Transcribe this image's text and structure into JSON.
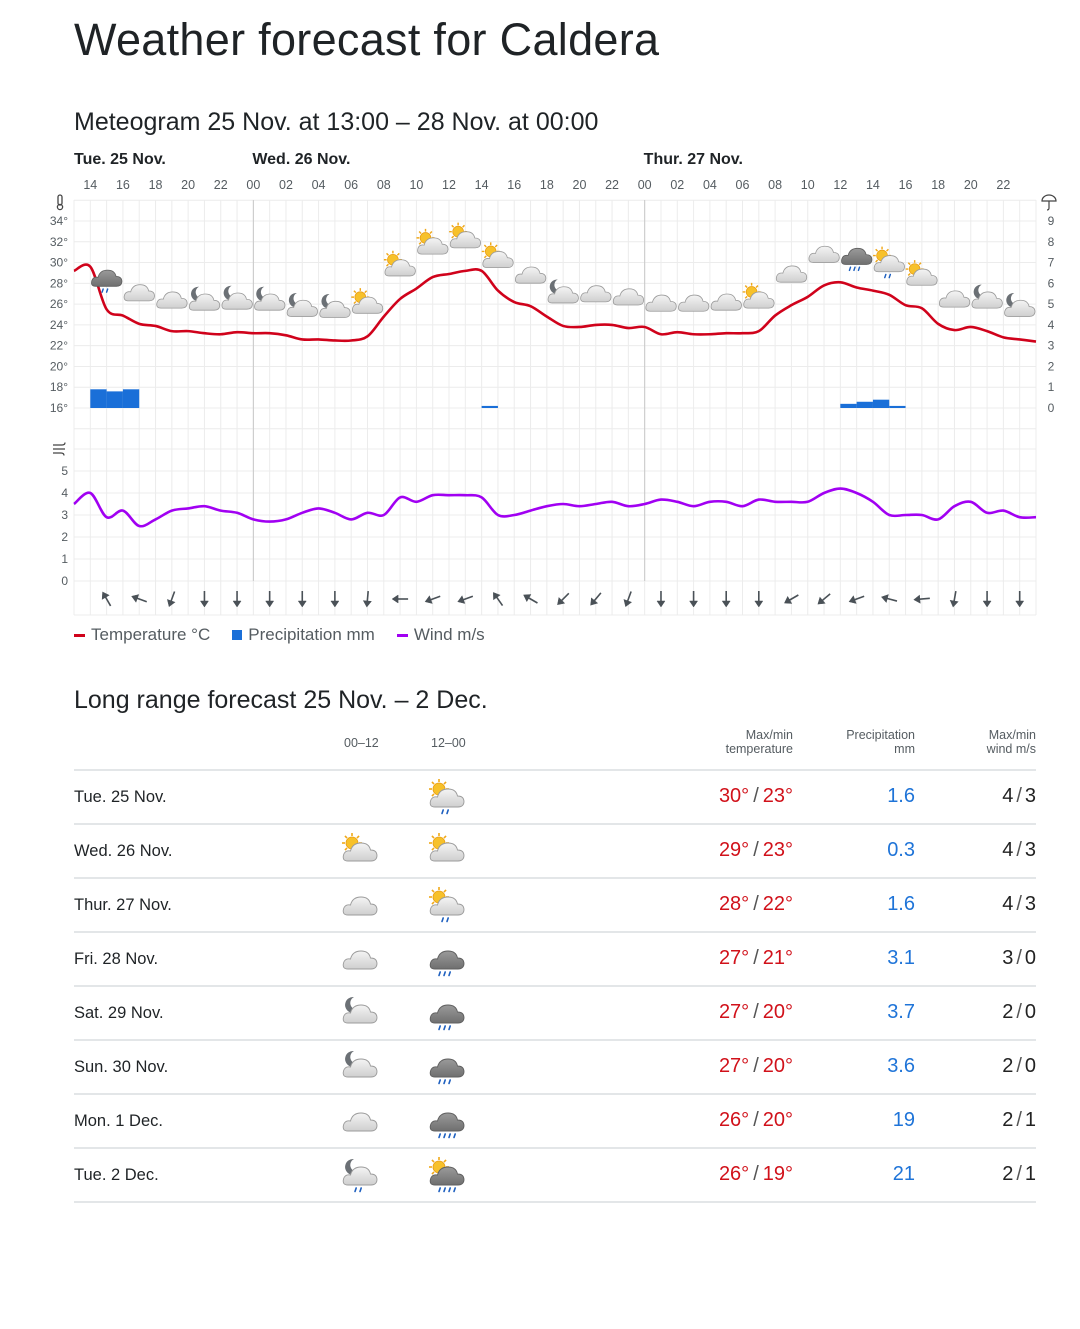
{
  "page_title": "Weather forecast for Caldera",
  "meteogram_title": "Meteogram 25 Nov. at 13:00 – 28 Nov. at 00:00",
  "long_range_title": "Long range forecast 25 Nov. – 2 Dec.",
  "colors": {
    "temperature": "#d0021b",
    "precipitation": "#1a6fd8",
    "wind": "#a100f2"
  },
  "chart_data": {
    "type": "line",
    "start": "25 Nov. 13:00",
    "end": "28 Nov. 00:00",
    "step_hours": 1,
    "day_labels": [
      {
        "label": "Tue. 25 Nov.",
        "hour_offset": 1
      },
      {
        "label": "Wed. 26 Nov.",
        "hour_offset": 11
      },
      {
        "label": "Thur. 27 Nov.",
        "hour_offset": 35
      }
    ],
    "hour_ticks": [
      "14",
      "16",
      "18",
      "20",
      "22",
      "00",
      "02",
      "04",
      "06",
      "08",
      "10",
      "12",
      "14",
      "16",
      "18",
      "20",
      "22",
      "00",
      "02",
      "04",
      "06",
      "08",
      "10",
      "12",
      "14",
      "16",
      "18",
      "20",
      "22"
    ],
    "temp_axis": {
      "ylim": [
        14,
        36
      ],
      "ticks": [
        "34°",
        "32°",
        "30°",
        "28°",
        "26°",
        "24°",
        "22°",
        "20°",
        "18°",
        "16°"
      ],
      "tick_values": [
        34,
        32,
        30,
        28,
        26,
        24,
        22,
        20,
        18,
        16
      ]
    },
    "precip_axis": {
      "ylim": [
        0,
        9
      ],
      "ticks": [
        "9",
        "8",
        "7",
        "6",
        "5",
        "4",
        "3",
        "2",
        "1",
        "0"
      ],
      "tick_values": [
        9,
        8,
        7,
        6,
        5,
        4,
        3,
        2,
        1,
        0
      ]
    },
    "wind_axis": {
      "ylim": [
        0,
        6
      ],
      "ticks": [
        "5",
        "4",
        "3",
        "2",
        "1",
        "0"
      ],
      "tick_values": [
        5,
        4,
        3,
        2,
        1,
        0
      ]
    },
    "series": [
      {
        "name": "Temperature °C",
        "values": [
          29.2,
          29.6,
          25.5,
          24.9,
          24.1,
          23.9,
          23.4,
          23.4,
          23.2,
          23.1,
          23.3,
          23.2,
          23.2,
          23.0,
          22.6,
          22.6,
          22.5,
          22.5,
          22.9,
          24.8,
          26.5,
          27.5,
          28.6,
          28.9,
          29.2,
          29.2,
          27.3,
          26.2,
          25.8,
          24.8,
          23.9,
          23.8,
          24.0,
          24.0,
          23.7,
          23.8,
          23.1,
          23.3,
          23.1,
          23.1,
          23.2,
          23.2,
          23.4,
          24.9,
          25.9,
          26.7,
          27.8,
          28.1,
          27.6,
          27.3,
          26.9,
          25.9,
          25.6,
          24.1,
          23.5,
          23.8,
          23.4,
          22.8,
          22.6,
          22.4
        ]
      },
      {
        "name": "Precipitation mm",
        "bars": [
          {
            "hour_offset": 1,
            "value": 0.9
          },
          {
            "hour_offset": 2,
            "value": 0.8
          },
          {
            "hour_offset": 3,
            "value": 0.9
          },
          {
            "hour_offset": 25,
            "value": 0.1
          },
          {
            "hour_offset": 47,
            "value": 0.2
          },
          {
            "hour_offset": 48,
            "value": 0.3
          },
          {
            "hour_offset": 49,
            "value": 0.4
          },
          {
            "hour_offset": 50,
            "value": 0.1
          }
        ]
      },
      {
        "name": "Wind m/s",
        "values": [
          3.5,
          4.0,
          2.9,
          3.2,
          2.5,
          2.8,
          3.2,
          3.3,
          3.4,
          3.2,
          3.1,
          2.8,
          2.7,
          2.8,
          3.1,
          3.3,
          3.1,
          2.8,
          3.1,
          3.0,
          3.8,
          3.6,
          3.9,
          3.9,
          3.9,
          3.8,
          3.0,
          3.0,
          3.2,
          3.4,
          3.5,
          3.4,
          3.5,
          3.6,
          3.4,
          3.5,
          3.7,
          3.6,
          3.4,
          3.6,
          3.6,
          3.4,
          3.7,
          3.6,
          3.6,
          3.6,
          4.0,
          4.2,
          4.0,
          3.6,
          3.0,
          3.0,
          3.0,
          2.8,
          3.4,
          3.6,
          3.1,
          3.2,
          2.9,
          2.9
        ]
      }
    ],
    "symbols_every_2h_from_offset_2": [
      "cloudy-dark-light-rain",
      "cloudy",
      "cloudy",
      "partly-cloudy-night",
      "partly-cloudy-night",
      "partly-cloudy-night",
      "partly-cloudy-night",
      "partly-cloudy-night",
      "partly-cloudy-day",
      "partly-cloudy-day",
      "partly-cloudy-day",
      "partly-cloudy-day",
      "partly-cloudy-day",
      "cloudy",
      "partly-cloudy-night",
      "cloudy",
      "cloudy",
      "cloudy",
      "cloudy",
      "cloudy",
      "partly-cloudy-day",
      "cloudy",
      "cloudy",
      "cloudy-dark-rain",
      "partly-cloudy-day-light-rain",
      "partly-cloudy-day",
      "cloudy",
      "partly-cloudy-night",
      "partly-cloudy-night"
    ],
    "wind_arrow_bearing_deg_every_2h_from_offset_2": [
      330,
      290,
      200,
      180,
      180,
      180,
      180,
      180,
      185,
      270,
      250,
      250,
      325,
      300,
      225,
      220,
      200,
      180,
      180,
      180,
      180,
      240,
      230,
      250,
      285,
      265,
      190,
      180,
      180
    ],
    "legend": [
      {
        "label": "Temperature °C",
        "color": "#d0021b"
      },
      {
        "label": "Precipitation mm",
        "color": "#1a6fd8"
      },
      {
        "label": "Wind m/s",
        "color": "#a100f2"
      }
    ]
  },
  "long_range": {
    "headers": {
      "period1": "00–12",
      "period2": "12–00",
      "temp_line1": "Max/min",
      "temp_line2": "temperature",
      "precip_line1": "Precipitation",
      "precip_line2": "mm",
      "wind_line1": "Max/min",
      "wind_line2": "wind m/s"
    },
    "rows": [
      {
        "day": "Tue. 25 Nov.",
        "sym1": "",
        "sym2": "partly-cloudy-day-light-rain",
        "max": "30°",
        "min": "23°",
        "precip": "1.6",
        "wind_max": "4",
        "wind_min": "3"
      },
      {
        "day": "Wed. 26 Nov.",
        "sym1": "partly-cloudy-day",
        "sym2": "partly-cloudy-day",
        "max": "29°",
        "min": "23°",
        "precip": "0.3",
        "wind_max": "4",
        "wind_min": "3"
      },
      {
        "day": "Thur. 27 Nov.",
        "sym1": "cloudy",
        "sym2": "partly-cloudy-day-light-rain",
        "max": "28°",
        "min": "22°",
        "precip": "1.6",
        "wind_max": "4",
        "wind_min": "3"
      },
      {
        "day": "Fri. 28 Nov.",
        "sym1": "cloudy",
        "sym2": "cloudy-dark-rain",
        "max": "27°",
        "min": "21°",
        "precip": "3.1",
        "wind_max": "3",
        "wind_min": "0"
      },
      {
        "day": "Sat. 29 Nov.",
        "sym1": "partly-cloudy-night",
        "sym2": "cloudy-dark-rain",
        "max": "27°",
        "min": "20°",
        "precip": "3.7",
        "wind_max": "2",
        "wind_min": "0"
      },
      {
        "day": "Sun. 30 Nov.",
        "sym1": "partly-cloudy-night",
        "sym2": "cloudy-dark-rain",
        "max": "27°",
        "min": "20°",
        "precip": "3.6",
        "wind_max": "2",
        "wind_min": "0"
      },
      {
        "day": "Mon. 1 Dec.",
        "sym1": "cloudy",
        "sym2": "cloudy-dark-heavy-rain",
        "max": "26°",
        "min": "20°",
        "precip": "19",
        "wind_max": "2",
        "wind_min": "1"
      },
      {
        "day": "Tue. 2 Dec.",
        "sym1": "partly-cloudy-night-light-rain",
        "sym2": "partly-cloudy-day-dark-heavy-rain",
        "max": "26°",
        "min": "19°",
        "precip": "21",
        "wind_max": "2",
        "wind_min": "1"
      }
    ]
  }
}
